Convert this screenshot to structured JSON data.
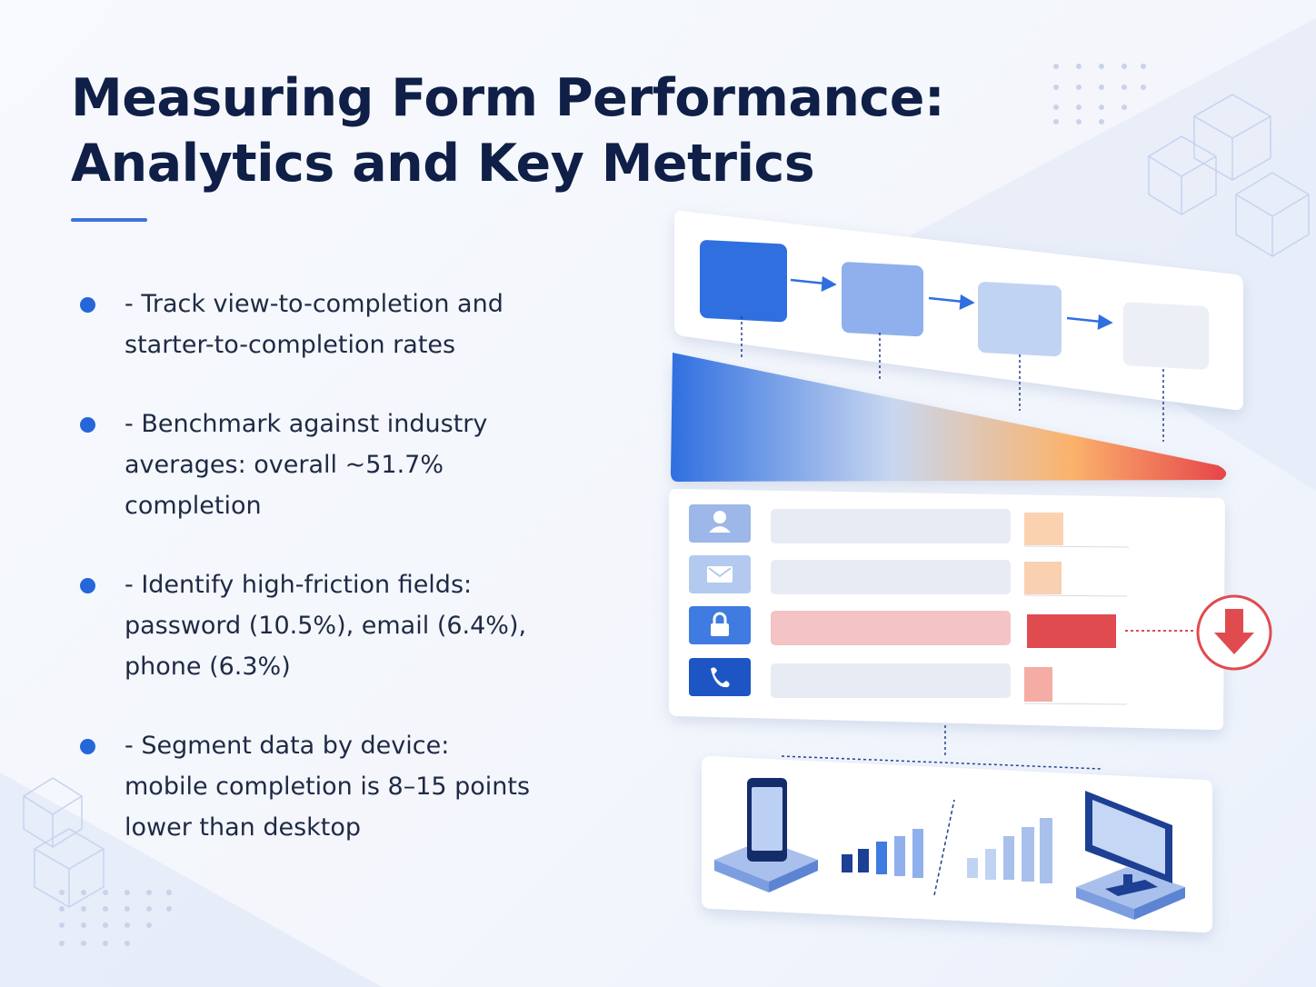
{
  "header": {
    "title": [
      "Measuring Form Performance:",
      "Analytics and Key Metrics"
    ]
  },
  "bullets": [
    "- Track view-to-completion and starter-to-completion rates",
    "- Benchmark against industry averages: overall ~51.7% completion",
    "- Identify high-friction fields: password (10.5%), email (6.4%), phone (6.3%)",
    "- Segment data by device: mobile completion is 8–15 points lower than desktop"
  ]
}
